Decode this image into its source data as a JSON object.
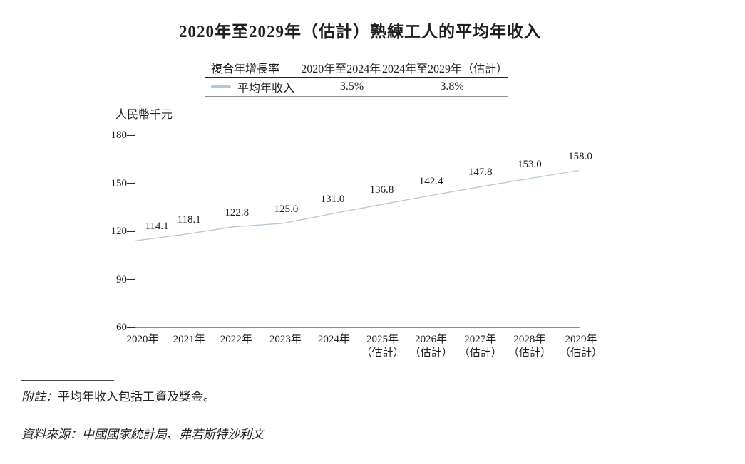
{
  "title": "2020年至2029年（估計）熟練工人的平均年收入",
  "legend_table": {
    "col_metric": "複合年增長率",
    "col_period1": "2020年至2024年",
    "col_period2": "2024年至2029年（估計）",
    "series_label": "平均年收入",
    "cagr_period1": "3.5%",
    "cagr_period2": "3.8%"
  },
  "y_axis_unit": "人民幣千元",
  "chart_data": {
    "type": "line",
    "title": "2020年至2029年（估計）熟練工人的平均年收入",
    "ylabel": "人民幣千元",
    "xlabel": "",
    "ylim": [
      60,
      180
    ],
    "yticks": [
      180,
      150,
      120,
      90,
      60
    ],
    "grid": false,
    "legend_position": "top-table",
    "categories": [
      [
        "2020年"
      ],
      [
        "2021年"
      ],
      [
        "2022年"
      ],
      [
        "2023年"
      ],
      [
        "2024年"
      ],
      [
        "2025年",
        "（估計）"
      ],
      [
        "2026年",
        "（估計）"
      ],
      [
        "2027年",
        "（估計）"
      ],
      [
        "2028年",
        "（估計）"
      ],
      [
        "2029年",
        "（估計）"
      ]
    ],
    "series": [
      {
        "name": "平均年收入",
        "color": "#b4c8d6",
        "values": [
          114.1,
          118.1,
          122.8,
          125.0,
          131.0,
          136.8,
          142.4,
          147.8,
          153.0,
          158.0
        ]
      }
    ],
    "value_labels": [
      "114.1",
      "118.1",
      "122.8",
      "125.0",
      "131.0",
      "136.8",
      "142.4",
      "147.8",
      "153.0",
      "158.0"
    ],
    "cagr": [
      {
        "period": "2020年至2024年",
        "value": "3.5%"
      },
      {
        "period": "2024年至2029年（估計）",
        "value": "3.8%"
      }
    ]
  },
  "footnote": {
    "prefix": "附註：",
    "text": "平均年收入包括工資及獎金。"
  },
  "source": "資料來源：中國國家統計局、弗若斯特沙利文",
  "colors": {
    "line": "#b4c8d6",
    "x_axis": "#8c8c8c",
    "y_axis": "#2b2b2b",
    "text": "#1f1f1f"
  }
}
